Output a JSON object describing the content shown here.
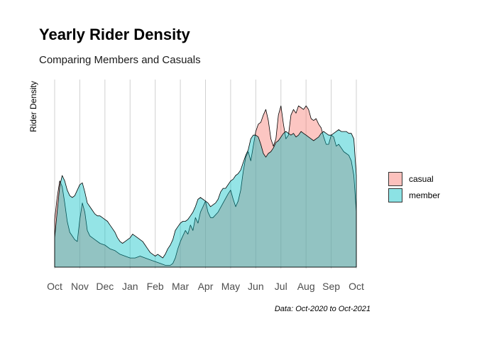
{
  "chart_data": {
    "type": "area",
    "title": "Yearly Rider Density",
    "subtitle": "Comparing Members and Casuals",
    "xlabel": "",
    "ylabel": "Rider Density",
    "caption": "Data: Oct-2020 to Oct-2021",
    "grid": true,
    "legend_position": "right",
    "x_ticks": [
      "Oct",
      "Nov",
      "Dec",
      "Jan",
      "Feb",
      "Mar",
      "Apr",
      "May",
      "Jun",
      "Jul",
      "Aug",
      "Sep",
      "Oct"
    ],
    "xlim": [
      0,
      12
    ],
    "ylim": [
      0,
      1
    ],
    "series": [
      {
        "name": "casual",
        "color": "#f8766d",
        "points": [
          [
            0,
            0.26
          ],
          [
            0.1,
            0.38
          ],
          [
            0.2,
            0.47
          ],
          [
            0.3,
            0.44
          ],
          [
            0.4,
            0.35
          ],
          [
            0.5,
            0.25
          ],
          [
            0.6,
            0.19
          ],
          [
            0.7,
            0.17
          ],
          [
            0.8,
            0.15
          ],
          [
            0.9,
            0.14
          ],
          [
            1.0,
            0.26
          ],
          [
            1.1,
            0.35
          ],
          [
            1.2,
            0.3
          ],
          [
            1.3,
            0.2
          ],
          [
            1.4,
            0.17
          ],
          [
            1.6,
            0.15
          ],
          [
            1.8,
            0.13
          ],
          [
            2.0,
            0.12
          ],
          [
            2.2,
            0.1
          ],
          [
            2.4,
            0.09
          ],
          [
            2.6,
            0.07
          ],
          [
            2.8,
            0.06
          ],
          [
            3.0,
            0.05
          ],
          [
            3.2,
            0.05
          ],
          [
            3.4,
            0.06
          ],
          [
            3.6,
            0.05
          ],
          [
            3.8,
            0.04
          ],
          [
            4.0,
            0.03
          ],
          [
            4.2,
            0.02
          ],
          [
            4.4,
            0.01
          ],
          [
            4.6,
            0.01
          ],
          [
            4.7,
            0.02
          ],
          [
            4.8,
            0.05
          ],
          [
            4.9,
            0.1
          ],
          [
            5.0,
            0.14
          ],
          [
            5.1,
            0.17
          ],
          [
            5.2,
            0.2
          ],
          [
            5.3,
            0.18
          ],
          [
            5.4,
            0.23
          ],
          [
            5.5,
            0.2
          ],
          [
            5.6,
            0.27
          ],
          [
            5.7,
            0.24
          ],
          [
            5.8,
            0.3
          ],
          [
            5.9,
            0.33
          ],
          [
            6.0,
            0.36
          ],
          [
            6.1,
            0.3
          ],
          [
            6.2,
            0.27
          ],
          [
            6.3,
            0.27
          ],
          [
            6.5,
            0.3
          ],
          [
            6.7,
            0.35
          ],
          [
            6.9,
            0.4
          ],
          [
            7.0,
            0.42
          ],
          [
            7.1,
            0.37
          ],
          [
            7.2,
            0.33
          ],
          [
            7.3,
            0.36
          ],
          [
            7.4,
            0.42
          ],
          [
            7.5,
            0.52
          ],
          [
            7.6,
            0.6
          ],
          [
            7.7,
            0.63
          ],
          [
            7.8,
            0.58
          ],
          [
            7.9,
            0.66
          ],
          [
            8.0,
            0.74
          ],
          [
            8.1,
            0.78
          ],
          [
            8.2,
            0.79
          ],
          [
            8.3,
            0.83
          ],
          [
            8.4,
            0.86
          ],
          [
            8.5,
            0.8
          ],
          [
            8.6,
            0.7
          ],
          [
            8.7,
            0.66
          ],
          [
            8.8,
            0.7
          ],
          [
            8.9,
            0.83
          ],
          [
            9.0,
            0.88
          ],
          [
            9.1,
            0.78
          ],
          [
            9.2,
            0.7
          ],
          [
            9.3,
            0.72
          ],
          [
            9.4,
            0.83
          ],
          [
            9.5,
            0.86
          ],
          [
            9.6,
            0.84
          ],
          [
            9.7,
            0.88
          ],
          [
            9.8,
            0.87
          ],
          [
            9.9,
            0.86
          ],
          [
            10.0,
            0.88
          ],
          [
            10.1,
            0.86
          ],
          [
            10.2,
            0.81
          ],
          [
            10.3,
            0.8
          ],
          [
            10.4,
            0.81
          ],
          [
            10.5,
            0.78
          ],
          [
            10.6,
            0.76
          ],
          [
            10.7,
            0.71
          ],
          [
            10.8,
            0.67
          ],
          [
            10.9,
            0.67
          ],
          [
            11.0,
            0.72
          ],
          [
            11.1,
            0.71
          ],
          [
            11.2,
            0.66
          ],
          [
            11.3,
            0.67
          ],
          [
            11.4,
            0.65
          ],
          [
            11.5,
            0.63
          ],
          [
            11.6,
            0.62
          ],
          [
            11.7,
            0.61
          ],
          [
            11.8,
            0.58
          ],
          [
            11.9,
            0.5
          ],
          [
            12.0,
            0.3
          ]
        ]
      },
      {
        "name": "member",
        "color": "#00bfc4",
        "points": [
          [
            0,
            0.16
          ],
          [
            0.1,
            0.3
          ],
          [
            0.2,
            0.44
          ],
          [
            0.3,
            0.5
          ],
          [
            0.4,
            0.47
          ],
          [
            0.5,
            0.42
          ],
          [
            0.6,
            0.39
          ],
          [
            0.7,
            0.38
          ],
          [
            0.8,
            0.39
          ],
          [
            0.9,
            0.42
          ],
          [
            1.0,
            0.45
          ],
          [
            1.1,
            0.46
          ],
          [
            1.2,
            0.41
          ],
          [
            1.3,
            0.35
          ],
          [
            1.4,
            0.33
          ],
          [
            1.5,
            0.31
          ],
          [
            1.6,
            0.29
          ],
          [
            1.7,
            0.28
          ],
          [
            1.8,
            0.28
          ],
          [
            1.9,
            0.27
          ],
          [
            2.0,
            0.26
          ],
          [
            2.1,
            0.25
          ],
          [
            2.2,
            0.23
          ],
          [
            2.3,
            0.21
          ],
          [
            2.4,
            0.19
          ],
          [
            2.5,
            0.16
          ],
          [
            2.6,
            0.14
          ],
          [
            2.7,
            0.13
          ],
          [
            2.8,
            0.14
          ],
          [
            2.9,
            0.15
          ],
          [
            3.0,
            0.16
          ],
          [
            3.1,
            0.18
          ],
          [
            3.2,
            0.17
          ],
          [
            3.3,
            0.16
          ],
          [
            3.4,
            0.15
          ],
          [
            3.5,
            0.14
          ],
          [
            3.6,
            0.12
          ],
          [
            3.7,
            0.1
          ],
          [
            3.8,
            0.08
          ],
          [
            3.9,
            0.07
          ],
          [
            4.0,
            0.06
          ],
          [
            4.1,
            0.07
          ],
          [
            4.2,
            0.06
          ],
          [
            4.3,
            0.05
          ],
          [
            4.4,
            0.07
          ],
          [
            4.5,
            0.1
          ],
          [
            4.6,
            0.12
          ],
          [
            4.7,
            0.15
          ],
          [
            4.8,
            0.2
          ],
          [
            4.9,
            0.22
          ],
          [
            5.0,
            0.24
          ],
          [
            5.1,
            0.25
          ],
          [
            5.2,
            0.25
          ],
          [
            5.3,
            0.26
          ],
          [
            5.4,
            0.28
          ],
          [
            5.5,
            0.3
          ],
          [
            5.6,
            0.33
          ],
          [
            5.7,
            0.37
          ],
          [
            5.8,
            0.38
          ],
          [
            5.9,
            0.37
          ],
          [
            6.0,
            0.36
          ],
          [
            6.1,
            0.35
          ],
          [
            6.2,
            0.33
          ],
          [
            6.3,
            0.34
          ],
          [
            6.4,
            0.35
          ],
          [
            6.5,
            0.37
          ],
          [
            6.6,
            0.41
          ],
          [
            6.7,
            0.43
          ],
          [
            6.8,
            0.43
          ],
          [
            6.9,
            0.45
          ],
          [
            7.0,
            0.47
          ],
          [
            7.1,
            0.48
          ],
          [
            7.2,
            0.5
          ],
          [
            7.3,
            0.51
          ],
          [
            7.4,
            0.53
          ],
          [
            7.5,
            0.57
          ],
          [
            7.6,
            0.61
          ],
          [
            7.7,
            0.64
          ],
          [
            7.8,
            0.7
          ],
          [
            7.9,
            0.72
          ],
          [
            8.0,
            0.72
          ],
          [
            8.1,
            0.71
          ],
          [
            8.2,
            0.67
          ],
          [
            8.3,
            0.62
          ],
          [
            8.4,
            0.6
          ],
          [
            8.5,
            0.62
          ],
          [
            8.6,
            0.63
          ],
          [
            8.7,
            0.65
          ],
          [
            8.8,
            0.68
          ],
          [
            8.9,
            0.69
          ],
          [
            9.0,
            0.71
          ],
          [
            9.1,
            0.73
          ],
          [
            9.2,
            0.74
          ],
          [
            9.3,
            0.73
          ],
          [
            9.4,
            0.72
          ],
          [
            9.5,
            0.73
          ],
          [
            9.6,
            0.71
          ],
          [
            9.7,
            0.72
          ],
          [
            9.8,
            0.74
          ],
          [
            9.9,
            0.73
          ],
          [
            10.0,
            0.72
          ],
          [
            10.1,
            0.71
          ],
          [
            10.2,
            0.7
          ],
          [
            10.3,
            0.69
          ],
          [
            10.4,
            0.7
          ],
          [
            10.5,
            0.71
          ],
          [
            10.6,
            0.73
          ],
          [
            10.7,
            0.74
          ],
          [
            10.8,
            0.73
          ],
          [
            10.9,
            0.72
          ],
          [
            11.0,
            0.72
          ],
          [
            11.1,
            0.73
          ],
          [
            11.2,
            0.74
          ],
          [
            11.3,
            0.75
          ],
          [
            11.4,
            0.74
          ],
          [
            11.5,
            0.74
          ],
          [
            11.6,
            0.74
          ],
          [
            11.7,
            0.73
          ],
          [
            11.8,
            0.73
          ],
          [
            11.9,
            0.7
          ],
          [
            12.0,
            0.5
          ]
        ]
      }
    ]
  }
}
